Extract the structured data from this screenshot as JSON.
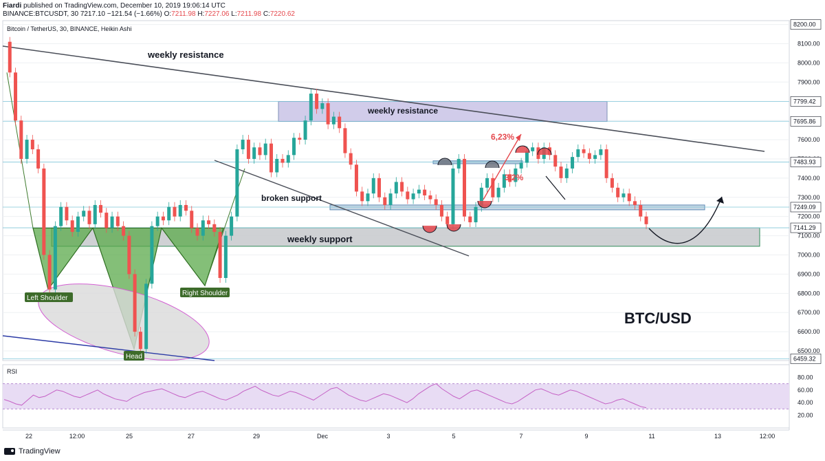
{
  "header": {
    "author": "Fiardi",
    "published": "published on TradingView.com, December 10, 2019 19:06:14 UTC",
    "symbol": "BINANCE:BTCUSDT, 30",
    "last": "7217.10",
    "change": "−121.54 (−1.66%)",
    "o_label": "O:",
    "o": "7211.98",
    "h_label": "H:",
    "h": "7227.06",
    "l_label": "L:",
    "l": "7211.98",
    "c_label": "C:",
    "c": "7220.62"
  },
  "footer": {
    "brand": "TradingView"
  },
  "chart_data": {
    "type": "candlestick",
    "title": "Bitcoin / TetherUS, 30, BINANCE, Heikin Ashi",
    "price_axis": {
      "ticks": [
        6500,
        6600,
        6700,
        6800,
        6900,
        7000,
        7100,
        7200,
        7300,
        7400,
        7500,
        7600,
        7700,
        7800,
        7900,
        8000,
        8100,
        8200
      ],
      "ylim": [
        6450,
        8220
      ]
    },
    "x_ticks": [
      "22",
      "12:00",
      "25",
      "27",
      "29",
      "Dec",
      "3",
      "5",
      "7",
      "9",
      "11",
      "13",
      "12:00"
    ],
    "price_flags": [
      {
        "value": "8200.00",
        "color": "#ffffff"
      },
      {
        "value": "7799.42",
        "color": "#ffffff"
      },
      {
        "value": "7695.86",
        "color": "#ffffff"
      },
      {
        "value": "7483.93",
        "color": "#ffffff"
      },
      {
        "value": "7249.09",
        "color": "#ffffff"
      },
      {
        "value": "7141.29",
        "color": "#ffffff"
      },
      {
        "value": "6459.32",
        "color": "#ffffff"
      }
    ],
    "price_path": [
      [
        0,
        8110
      ],
      [
        1,
        7950
      ],
      [
        2,
        7700
      ],
      [
        3,
        7500
      ],
      [
        4,
        7600
      ],
      [
        5,
        7550
      ],
      [
        6,
        7450
      ],
      [
        7,
        7000
      ],
      [
        8,
        6820
      ],
      [
        9,
        7150
      ],
      [
        10,
        7250
      ],
      [
        11,
        7180
      ],
      [
        12,
        7120
      ],
      [
        13,
        7200
      ],
      [
        14,
        7230
      ],
      [
        15,
        7160
      ],
      [
        16,
        7260
      ],
      [
        17,
        7220
      ],
      [
        18,
        7140
      ],
      [
        19,
        7200
      ],
      [
        20,
        7150
      ],
      [
        21,
        7100
      ],
      [
        22,
        6900
      ],
      [
        23,
        6600
      ],
      [
        24,
        6510
      ],
      [
        25,
        6850
      ],
      [
        26,
        7150
      ],
      [
        27,
        7200
      ],
      [
        28,
        7180
      ],
      [
        29,
        7250
      ],
      [
        30,
        7200
      ],
      [
        31,
        7260
      ],
      [
        32,
        7230
      ],
      [
        33,
        7140
      ],
      [
        34,
        7100
      ],
      [
        35,
        7180
      ],
      [
        36,
        7160
      ],
      [
        37,
        7120
      ],
      [
        38,
        6880
      ],
      [
        39,
        7100
      ],
      [
        40,
        7200
      ],
      [
        41,
        7550
      ],
      [
        42,
        7600
      ],
      [
        43,
        7500
      ],
      [
        44,
        7560
      ],
      [
        45,
        7520
      ],
      [
        46,
        7580
      ],
      [
        47,
        7430
      ],
      [
        48,
        7500
      ],
      [
        49,
        7480
      ],
      [
        50,
        7520
      ],
      [
        51,
        7610
      ],
      [
        52,
        7600
      ],
      [
        53,
        7700
      ],
      [
        54,
        7840
      ],
      [
        55,
        7760
      ],
      [
        56,
        7790
      ],
      [
        57,
        7680
      ],
      [
        58,
        7720
      ],
      [
        59,
        7660
      ],
      [
        60,
        7530
      ],
      [
        61,
        7470
      ],
      [
        62,
        7330
      ],
      [
        63,
        7280
      ],
      [
        64,
        7320
      ],
      [
        65,
        7400
      ],
      [
        66,
        7300
      ],
      [
        67,
        7260
      ],
      [
        68,
        7320
      ],
      [
        69,
        7380
      ],
      [
        70,
        7330
      ],
      [
        71,
        7290
      ],
      [
        72,
        7320
      ],
      [
        73,
        7340
      ],
      [
        74,
        7310
      ],
      [
        75,
        7290
      ],
      [
        76,
        7260
      ],
      [
        77,
        7200
      ],
      [
        78,
        7160
      ],
      [
        79,
        7450
      ],
      [
        80,
        7500
      ],
      [
        81,
        7200
      ],
      [
        82,
        7170
      ],
      [
        83,
        7250
      ],
      [
        84,
        7350
      ],
      [
        85,
        7400
      ],
      [
        86,
        7300
      ],
      [
        87,
        7350
      ],
      [
        88,
        7420
      ],
      [
        89,
        7380
      ],
      [
        90,
        7450
      ],
      [
        91,
        7480
      ],
      [
        92,
        7540
      ],
      [
        93,
        7560
      ],
      [
        94,
        7500
      ],
      [
        95,
        7560
      ],
      [
        96,
        7520
      ],
      [
        97,
        7460
      ],
      [
        98,
        7400
      ],
      [
        99,
        7450
      ],
      [
        100,
        7510
      ],
      [
        101,
        7550
      ],
      [
        102,
        7530
      ],
      [
        103,
        7500
      ],
      [
        104,
        7520
      ],
      [
        105,
        7550
      ],
      [
        106,
        7400
      ],
      [
        107,
        7350
      ],
      [
        108,
        7300
      ],
      [
        109,
        7320
      ],
      [
        110,
        7280
      ],
      [
        111,
        7260
      ],
      [
        112,
        7200
      ],
      [
        113,
        7160
      ]
    ],
    "annotations": [
      "weekly resistance",
      "weekly resistance",
      "broken support",
      "weekly support",
      "Left Shoulder",
      "Head",
      "Right Shoulder",
      "6,23%",
      "3,2%",
      "BTC/USD"
    ],
    "rsi": {
      "label": "RSI",
      "ticks": [
        "80.00",
        "60.00",
        "40.00",
        "20.00"
      ],
      "band": [
        30,
        70
      ],
      "values": [
        45,
        42,
        38,
        36,
        44,
        52,
        48,
        50,
        55,
        60,
        58,
        54,
        50,
        48,
        52,
        56,
        60,
        54,
        50,
        46,
        44,
        42,
        48,
        52,
        56,
        58,
        60,
        62,
        58,
        54,
        50,
        48,
        52,
        56,
        58,
        54,
        50,
        46,
        44,
        48,
        52,
        58,
        62,
        66,
        60,
        56,
        52,
        50,
        54,
        58,
        56,
        52,
        48,
        44,
        50,
        56,
        62,
        64,
        58,
        52,
        48,
        44,
        42,
        46,
        50,
        54,
        52,
        48,
        44,
        40,
        46,
        54,
        60,
        66,
        70,
        62,
        56,
        50,
        46,
        52,
        58,
        60,
        56,
        52,
        48,
        44,
        40,
        38,
        42,
        48,
        54,
        60,
        62,
        58,
        54,
        52,
        56,
        60,
        58,
        54,
        50,
        46,
        42,
        38,
        40,
        44,
        46,
        42,
        38,
        34,
        32
      ]
    }
  }
}
